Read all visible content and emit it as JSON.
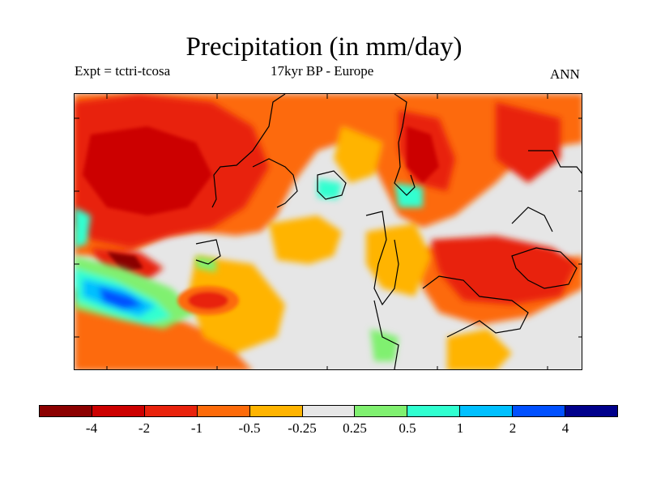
{
  "title": "Precipitation (in mm/day)",
  "subtitle_left": "Expt = tctri-tcosa",
  "subtitle_center": "17kyr BP - Europe",
  "subtitle_right": "ANN",
  "colors": {
    "background": "#e6e6e6",
    "coastline": "#000000",
    "colorbar": [
      "#8b0000",
      "#cc0000",
      "#e8220c",
      "#fd6b0a",
      "#ffb400",
      "#e6e6e6",
      "#80f070",
      "#30ffd0",
      "#00c0ff",
      "#0050ff",
      "#00008b"
    ]
  },
  "colorbar_labels": [
    "-4",
    "-2",
    "-1",
    "-0.5",
    "-0.25",
    "0.25",
    "0.5",
    "1",
    "2",
    "4"
  ]
}
